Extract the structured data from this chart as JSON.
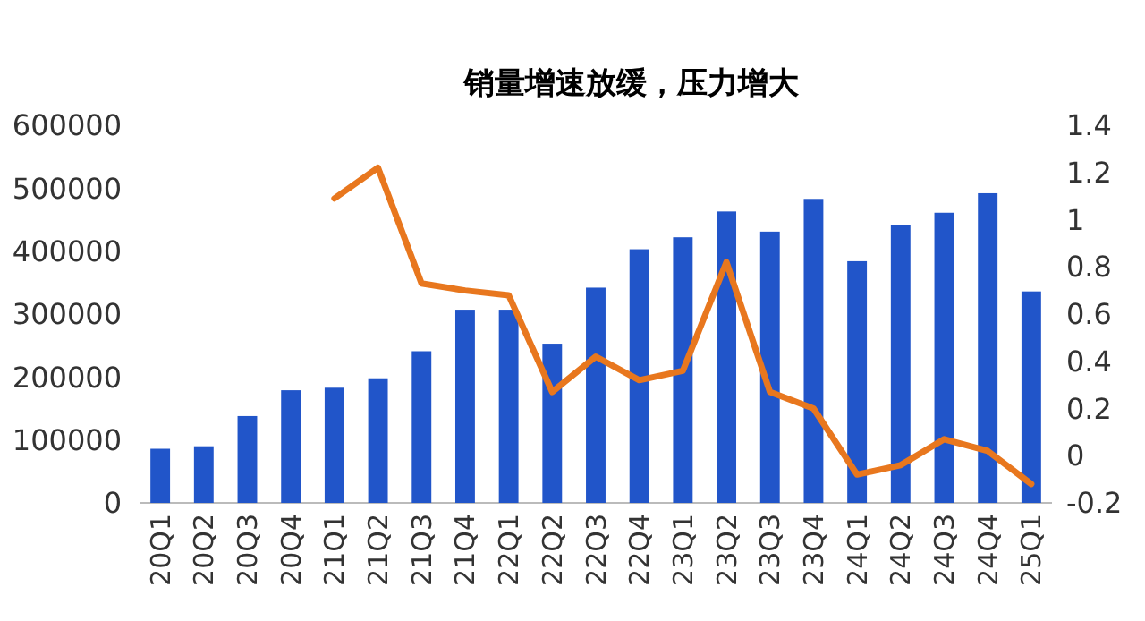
{
  "chart_data": {
    "type": "bar",
    "title": "销量增速放缓，压力增大",
    "categories": [
      "20Q1",
      "20Q2",
      "20Q3",
      "20Q4",
      "21Q1",
      "21Q2",
      "21Q3",
      "21Q4",
      "22Q1",
      "22Q2",
      "22Q3",
      "22Q4",
      "23Q1",
      "23Q2",
      "23Q3",
      "23Q4",
      "24Q1",
      "24Q2",
      "24Q3",
      "24Q4",
      "25Q1"
    ],
    "series": [
      {
        "color": "#2155c9",
        "values": [
          86000,
          90000,
          138000,
          179000,
          183000,
          198000,
          241000,
          307000,
          307000,
          253000,
          342000,
          403000,
          422000,
          463000,
          431000,
          483000,
          384000,
          441000,
          461000,
          492000,
          336000
        ]
      },
      {
        "type": "line",
        "axis": "y2",
        "color": "#e8771e",
        "values": [
          null,
          null,
          null,
          null,
          1.09,
          1.22,
          0.73,
          0.7,
          0.68,
          0.27,
          0.42,
          0.32,
          0.36,
          0.82,
          0.27,
          0.2,
          -0.08,
          -0.04,
          0.07,
          0.02,
          -0.12
        ]
      }
    ],
    "ylim": [
      0,
      600000
    ],
    "yticks": [
      0,
      100000,
      200000,
      300000,
      400000,
      500000,
      600000
    ],
    "y2lim": [
      -0.2,
      1.4
    ],
    "y2ticks": [
      -0.2,
      0,
      0.2,
      0.4,
      0.6,
      0.8,
      1,
      1.2,
      1.4
    ],
    "grid": false,
    "marker": "none"
  }
}
